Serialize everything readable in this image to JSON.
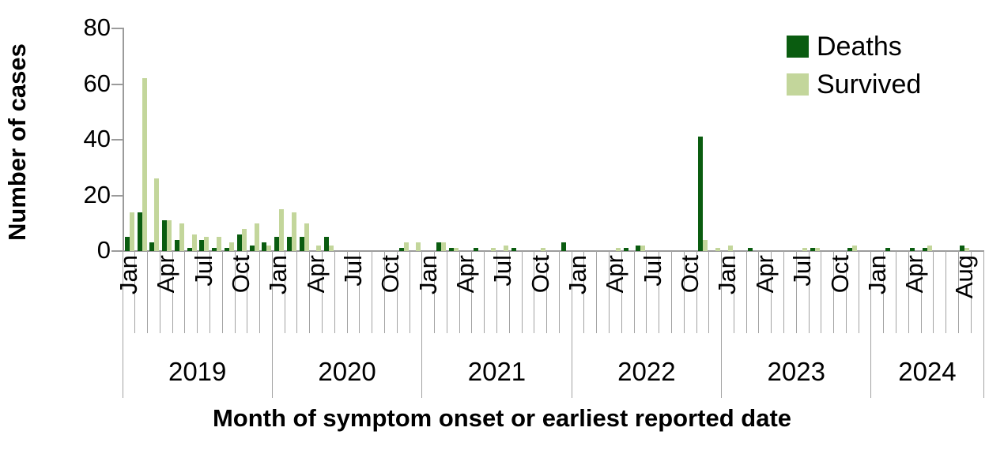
{
  "colors": {
    "deaths": "#0a5c10",
    "survived": "#c3d69b",
    "axis": "#9b9b9b",
    "tick": "#a3a3a3",
    "text": "#000000"
  },
  "chart_data": {
    "type": "bar",
    "title": "",
    "ylabel": "Number of cases",
    "xlabel": "Month of symptom onset or earliest reported date",
    "ylim": [
      0,
      80
    ],
    "yticks": [
      0,
      20,
      40,
      60,
      80
    ],
    "grid": false,
    "legend_position": "top-right",
    "legend": [
      {
        "name": "Deaths",
        "color": "#0a5c10"
      },
      {
        "name": "Survived",
        "color": "#c3d69b"
      }
    ],
    "years": [
      {
        "label": "2019",
        "months": 12
      },
      {
        "label": "2020",
        "months": 12
      },
      {
        "label": "2021",
        "months": 12
      },
      {
        "label": "2022",
        "months": 12
      },
      {
        "label": "2023",
        "months": 12
      },
      {
        "label": "2024",
        "months": 9
      }
    ],
    "months": [
      {
        "year": 2019,
        "month": "Jan",
        "label": "Jan",
        "deaths": 5,
        "survived": 14
      },
      {
        "year": 2019,
        "month": "Feb",
        "label": "",
        "deaths": 14,
        "survived": 62
      },
      {
        "year": 2019,
        "month": "Mar",
        "label": "",
        "deaths": 3,
        "survived": 26
      },
      {
        "year": 2019,
        "month": "Apr",
        "label": "Apr",
        "deaths": 11,
        "survived": 11
      },
      {
        "year": 2019,
        "month": "May",
        "label": "",
        "deaths": 4,
        "survived": 10
      },
      {
        "year": 2019,
        "month": "Jun",
        "label": "",
        "deaths": 1,
        "survived": 6
      },
      {
        "year": 2019,
        "month": "Jul",
        "label": "Jul",
        "deaths": 4,
        "survived": 5
      },
      {
        "year": 2019,
        "month": "Aug",
        "label": "",
        "deaths": 1,
        "survived": 5
      },
      {
        "year": 2019,
        "month": "Sep",
        "label": "",
        "deaths": 1,
        "survived": 3
      },
      {
        "year": 2019,
        "month": "Oct",
        "label": "Oct",
        "deaths": 6,
        "survived": 8
      },
      {
        "year": 2019,
        "month": "Nov",
        "label": "",
        "deaths": 2,
        "survived": 10
      },
      {
        "year": 2019,
        "month": "Dec",
        "label": "",
        "deaths": 3,
        "survived": 2
      },
      {
        "year": 2020,
        "month": "Jan",
        "label": "Jan",
        "deaths": 5,
        "survived": 15
      },
      {
        "year": 2020,
        "month": "Feb",
        "label": "",
        "deaths": 5,
        "survived": 14
      },
      {
        "year": 2020,
        "month": "Mar",
        "label": "",
        "deaths": 5,
        "survived": 10
      },
      {
        "year": 2020,
        "month": "Apr",
        "label": "Apr",
        "deaths": 0,
        "survived": 2
      },
      {
        "year": 2020,
        "month": "May",
        "label": "",
        "deaths": 5,
        "survived": 2
      },
      {
        "year": 2020,
        "month": "Jun",
        "label": "",
        "deaths": 0,
        "survived": 0
      },
      {
        "year": 2020,
        "month": "Jul",
        "label": "Jul",
        "deaths": 0,
        "survived": 0
      },
      {
        "year": 2020,
        "month": "Aug",
        "label": "",
        "deaths": 0,
        "survived": 0
      },
      {
        "year": 2020,
        "month": "Sep",
        "label": "",
        "deaths": 0,
        "survived": 0
      },
      {
        "year": 2020,
        "month": "Oct",
        "label": "Oct",
        "deaths": 0,
        "survived": 0
      },
      {
        "year": 2020,
        "month": "Nov",
        "label": "",
        "deaths": 1,
        "survived": 3
      },
      {
        "year": 2020,
        "month": "Dec",
        "label": "",
        "deaths": 0,
        "survived": 3
      },
      {
        "year": 2021,
        "month": "Jan",
        "label": "Jan",
        "deaths": 0,
        "survived": 0
      },
      {
        "year": 2021,
        "month": "Feb",
        "label": "",
        "deaths": 3,
        "survived": 3
      },
      {
        "year": 2021,
        "month": "Mar",
        "label": "",
        "deaths": 1,
        "survived": 1
      },
      {
        "year": 2021,
        "month": "Apr",
        "label": "Apr",
        "deaths": 0,
        "survived": 0
      },
      {
        "year": 2021,
        "month": "May",
        "label": "",
        "deaths": 1,
        "survived": 0
      },
      {
        "year": 2021,
        "month": "Jun",
        "label": "",
        "deaths": 0,
        "survived": 1
      },
      {
        "year": 2021,
        "month": "Jul",
        "label": "Jul",
        "deaths": 0,
        "survived": 2
      },
      {
        "year": 2021,
        "month": "Aug",
        "label": "",
        "deaths": 1,
        "survived": 0
      },
      {
        "year": 2021,
        "month": "Sep",
        "label": "",
        "deaths": 0,
        "survived": 0
      },
      {
        "year": 2021,
        "month": "Oct",
        "label": "Oct",
        "deaths": 0,
        "survived": 1
      },
      {
        "year": 2021,
        "month": "Nov",
        "label": "",
        "deaths": 0,
        "survived": 0
      },
      {
        "year": 2021,
        "month": "Dec",
        "label": "",
        "deaths": 3,
        "survived": 0
      },
      {
        "year": 2022,
        "month": "Jan",
        "label": "Jan",
        "deaths": 0,
        "survived": 0
      },
      {
        "year": 2022,
        "month": "Feb",
        "label": "",
        "deaths": 0,
        "survived": 0
      },
      {
        "year": 2022,
        "month": "Mar",
        "label": "",
        "deaths": 0,
        "survived": 0
      },
      {
        "year": 2022,
        "month": "Apr",
        "label": "Apr",
        "deaths": 0,
        "survived": 1
      },
      {
        "year": 2022,
        "month": "May",
        "label": "",
        "deaths": 1,
        "survived": 0
      },
      {
        "year": 2022,
        "month": "Jun",
        "label": "",
        "deaths": 2,
        "survived": 2
      },
      {
        "year": 2022,
        "month": "Jul",
        "label": "Jul",
        "deaths": 0,
        "survived": 0
      },
      {
        "year": 2022,
        "month": "Aug",
        "label": "",
        "deaths": 0,
        "survived": 0
      },
      {
        "year": 2022,
        "month": "Sep",
        "label": "",
        "deaths": 0,
        "survived": 0
      },
      {
        "year": 2022,
        "month": "Oct",
        "label": "Oct",
        "deaths": 0,
        "survived": 0
      },
      {
        "year": 2022,
        "month": "Nov",
        "label": "",
        "deaths": 41,
        "survived": 4
      },
      {
        "year": 2022,
        "month": "Dec",
        "label": "",
        "deaths": 0,
        "survived": 1
      },
      {
        "year": 2023,
        "month": "Jan",
        "label": "Jan",
        "deaths": 0,
        "survived": 2
      },
      {
        "year": 2023,
        "month": "Feb",
        "label": "",
        "deaths": 0,
        "survived": 0
      },
      {
        "year": 2023,
        "month": "Mar",
        "label": "",
        "deaths": 1,
        "survived": 0
      },
      {
        "year": 2023,
        "month": "Apr",
        "label": "Apr",
        "deaths": 0,
        "survived": 0
      },
      {
        "year": 2023,
        "month": "May",
        "label": "",
        "deaths": 0,
        "survived": 0
      },
      {
        "year": 2023,
        "month": "Jun",
        "label": "",
        "deaths": 0,
        "survived": 0
      },
      {
        "year": 2023,
        "month": "Jul",
        "label": "Jul",
        "deaths": 0,
        "survived": 1
      },
      {
        "year": 2023,
        "month": "Aug",
        "label": "",
        "deaths": 1,
        "survived": 1
      },
      {
        "year": 2023,
        "month": "Sep",
        "label": "",
        "deaths": 0,
        "survived": 0
      },
      {
        "year": 2023,
        "month": "Oct",
        "label": "Oct",
        "deaths": 0,
        "survived": 0
      },
      {
        "year": 2023,
        "month": "Nov",
        "label": "",
        "deaths": 1,
        "survived": 2
      },
      {
        "year": 2023,
        "month": "Dec",
        "label": "",
        "deaths": 0,
        "survived": 0
      },
      {
        "year": 2024,
        "month": "Jan",
        "label": "Jan",
        "deaths": 0,
        "survived": 0
      },
      {
        "year": 2024,
        "month": "Feb",
        "label": "",
        "deaths": 1,
        "survived": 0
      },
      {
        "year": 2024,
        "month": "Mar",
        "label": "",
        "deaths": 0,
        "survived": 0
      },
      {
        "year": 2024,
        "month": "Apr",
        "label": "Apr",
        "deaths": 1,
        "survived": 0
      },
      {
        "year": 2024,
        "month": "May",
        "label": "",
        "deaths": 1,
        "survived": 2
      },
      {
        "year": 2024,
        "month": "Jun",
        "label": "",
        "deaths": 0,
        "survived": 0
      },
      {
        "year": 2024,
        "month": "Jul",
        "label": "",
        "deaths": 0,
        "survived": 0
      },
      {
        "year": 2024,
        "month": "Aug",
        "label": "Aug",
        "deaths": 2,
        "survived": 1
      },
      {
        "year": 2024,
        "month": "Sep",
        "label": "",
        "deaths": 0,
        "survived": 0
      }
    ]
  }
}
